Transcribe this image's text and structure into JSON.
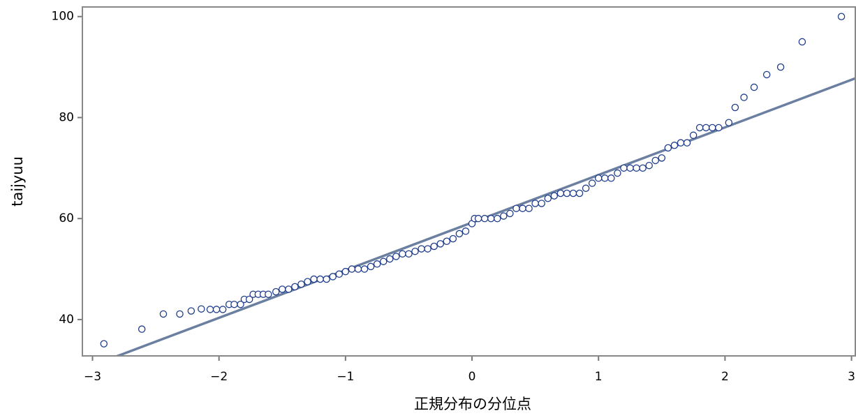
{
  "chart_data": {
    "type": "scatter",
    "x_label": "正規分布の分位点",
    "y_label": "taijyuu",
    "xlim": [
      -3.08,
      3.03
    ],
    "ylim": [
      32.8,
      101.9
    ],
    "xticks": [
      {
        "value": -3,
        "label": "−3"
      },
      {
        "value": -2,
        "label": "−2"
      },
      {
        "value": -1,
        "label": "−1"
      },
      0,
      1,
      2,
      3
    ],
    "yticks": [
      40,
      60,
      80,
      100
    ],
    "reference_line": {
      "intercept": 59.2,
      "slope": 9.43,
      "color": "#6b7fa0"
    },
    "series": [
      {
        "color": "#1f3d8c",
        "x": [
          -2.91,
          -2.61,
          -2.44,
          -2.31,
          -2.22,
          -2.14,
          -2.07,
          -2.02,
          -1.97,
          -1.92,
          -1.88,
          -1.83,
          -1.8,
          -1.76,
          -1.73,
          -1.69,
          -1.65,
          -1.61,
          -1.55,
          -1.5,
          -1.45,
          -1.4,
          -1.35,
          -1.3,
          -1.25,
          -1.2,
          -1.15,
          -1.1,
          -1.05,
          -1.0,
          -0.95,
          -0.9,
          -0.85,
          -0.8,
          -0.75,
          -0.7,
          -0.65,
          -0.6,
          -0.55,
          -0.5,
          -0.45,
          -0.4,
          -0.35,
          -0.3,
          -0.25,
          -0.2,
          -0.15,
          -0.1,
          -0.05,
          0.0,
          0.02,
          0.05,
          0.1,
          0.15,
          0.2,
          0.25,
          0.3,
          0.35,
          0.4,
          0.45,
          0.5,
          0.55,
          0.6,
          0.65,
          0.7,
          0.75,
          0.8,
          0.85,
          0.9,
          0.95,
          1.0,
          1.05,
          1.1,
          1.15,
          1.2,
          1.25,
          1.3,
          1.35,
          1.4,
          1.45,
          1.5,
          1.55,
          1.6,
          1.65,
          1.7,
          1.75,
          1.8,
          1.85,
          1.9,
          1.95,
          2.03,
          2.08,
          2.15,
          2.23,
          2.33,
          2.44,
          2.61,
          2.92
        ],
        "values": [
          35.2,
          38.1,
          41.1,
          41.1,
          41.7,
          42.1,
          42,
          42,
          42,
          43,
          43,
          43,
          44,
          44,
          45,
          45,
          45,
          45,
          45.5,
          46,
          46,
          46.5,
          47,
          47.5,
          48,
          48,
          48,
          48.5,
          49,
          49.5,
          50,
          50,
          50,
          50.5,
          51,
          51.5,
          52,
          52.5,
          53,
          53,
          53.5,
          54,
          54,
          54.5,
          55,
          55.5,
          56,
          57,
          57.5,
          59,
          60,
          60,
          60,
          60,
          60,
          60.5,
          61,
          62,
          62,
          62,
          63,
          63,
          64,
          64.5,
          65,
          65,
          65,
          65,
          66,
          67,
          68,
          68,
          68,
          69,
          70,
          70,
          70,
          70,
          70.5,
          71.5,
          72,
          74,
          74.5,
          75,
          75,
          76.5,
          78,
          78,
          78,
          78,
          79,
          82,
          84,
          86,
          88.5,
          90,
          95,
          100
        ]
      }
    ]
  }
}
